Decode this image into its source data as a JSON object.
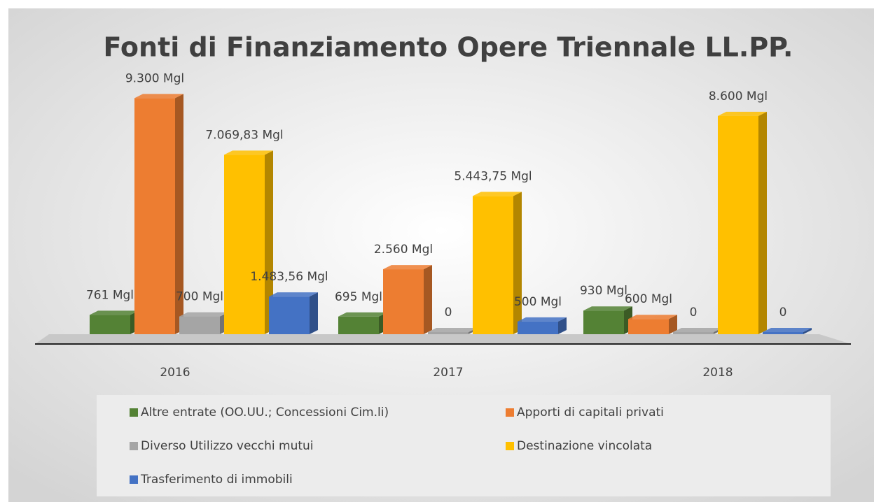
{
  "chart_data": {
    "type": "bar",
    "title": "Fonti di Finanziamento Opere Triennale LL.PP.",
    "categories": [
      "2016",
      "2017",
      "2018"
    ],
    "ylim": [
      0,
      10000
    ],
    "legend": "bottom",
    "series": [
      {
        "name": "Altre entrate (OO.UU.; Concessioni Cim.li)",
        "color": "#548235",
        "values": [
          761,
          695,
          930
        ],
        "value_labels": [
          "761 Mgl",
          "695 Mgl",
          "930 Mgl"
        ]
      },
      {
        "name": "Apporti di capitali privati",
        "color": "#ed7d31",
        "values": [
          9300,
          2560,
          600
        ],
        "value_labels": [
          "9.300 Mgl",
          "2.560 Mgl",
          "600 Mgl"
        ]
      },
      {
        "name": "Diverso Utilizzo vecchi mutui",
        "color": "#a5a5a5",
        "values": [
          700,
          0,
          0
        ],
        "value_labels": [
          "700 Mgl",
          "0",
          "0"
        ]
      },
      {
        "name": "Destinazione vincolata",
        "color": "#ffc000",
        "values": [
          7069.83,
          5443.75,
          8600
        ],
        "value_labels": [
          "7.069,83 Mgl",
          "5.443,75 Mgl",
          "8.600 Mgl"
        ]
      },
      {
        "name": "Trasferimento di immobili",
        "color": "#4472c4",
        "values": [
          1483.56,
          500,
          0
        ],
        "value_labels": [
          "1.483,56 Mgl",
          "500 Mgl",
          "0"
        ]
      }
    ]
  }
}
